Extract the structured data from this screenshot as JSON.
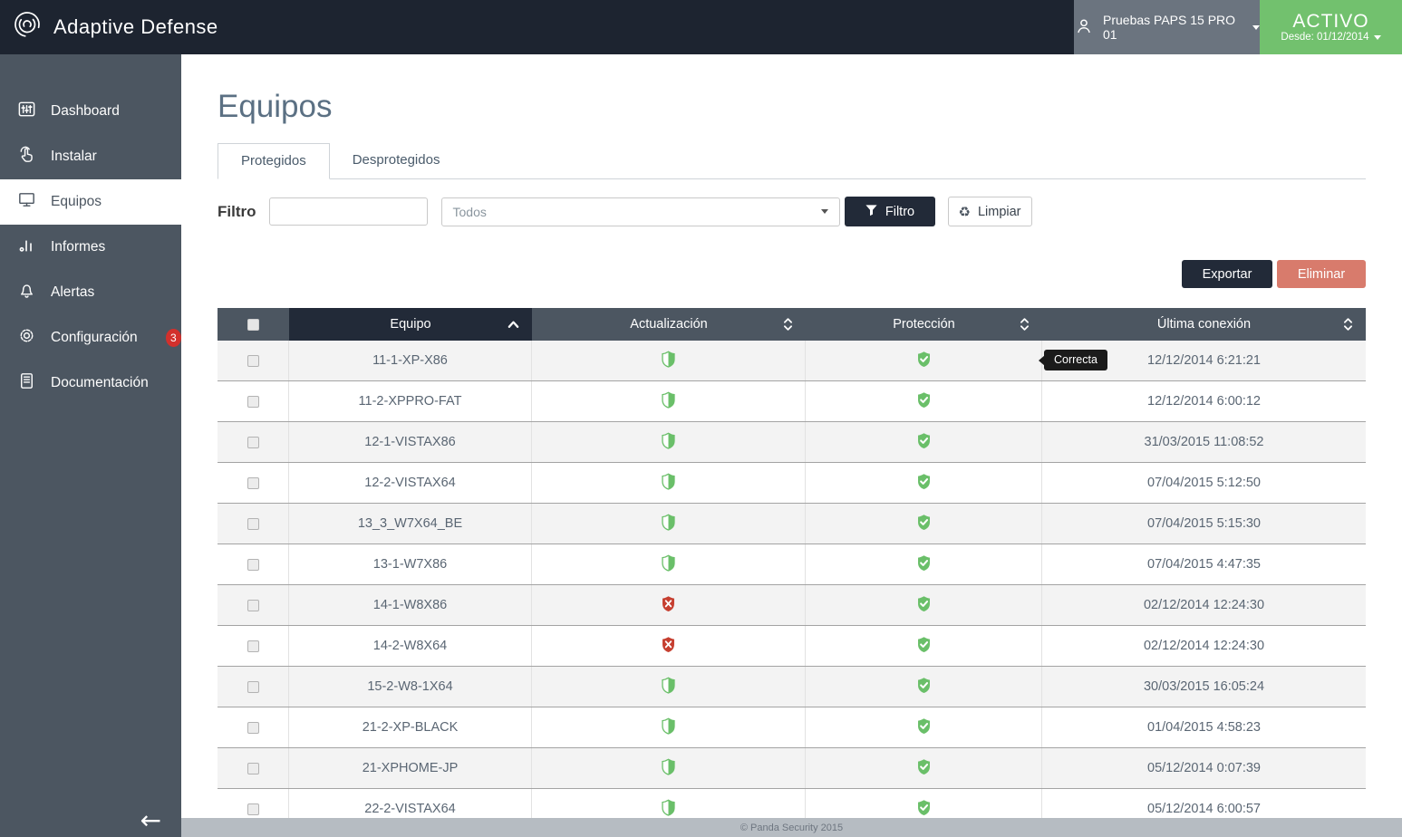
{
  "header": {
    "brand": "Adaptive Defense",
    "user": {
      "label": "Pruebas PAPS 15 PRO 01"
    },
    "status": {
      "title": "ACTIVO",
      "subtitle": "Desde: 01/12/2014"
    }
  },
  "sidebar": {
    "items": [
      {
        "label": "Dashboard",
        "icon": "dashboard-icon",
        "active": false
      },
      {
        "label": "Instalar",
        "icon": "install-icon",
        "active": false
      },
      {
        "label": "Equipos",
        "icon": "computers-icon",
        "active": true
      },
      {
        "label": "Informes",
        "icon": "reports-icon",
        "active": false
      },
      {
        "label": "Alertas",
        "icon": "alerts-icon",
        "active": false
      },
      {
        "label": "Configuración",
        "icon": "settings-icon",
        "active": false,
        "badge": "3"
      },
      {
        "label": "Documentación",
        "icon": "documentation-icon",
        "active": false
      }
    ]
  },
  "main": {
    "title": "Equipos",
    "tabs": [
      {
        "label": "Protegidos",
        "active": true
      },
      {
        "label": "Desprotegidos",
        "active": false
      }
    ],
    "filter": {
      "label": "Filtro",
      "input_value": "",
      "select_value": "Todos",
      "filter_button": "Filtro",
      "clear_button": "Limpiar"
    },
    "actions": {
      "export": "Exportar",
      "delete": "Eliminar"
    },
    "tooltip": "Correcta",
    "table": {
      "columns": [
        {
          "label": "Equipo",
          "sort": "asc"
        },
        {
          "label": "Actualización",
          "sort": "both"
        },
        {
          "label": "Protección",
          "sort": "both"
        },
        {
          "label": "Última conexión",
          "sort": "both"
        }
      ],
      "rows": [
        {
          "name": "11-1-XP-X86",
          "update": "partial",
          "protection": "ok",
          "last_connection": "12/12/2014 6:21:21"
        },
        {
          "name": "11-2-XPPRO-FAT",
          "update": "partial",
          "protection": "ok",
          "last_connection": "12/12/2014 6:00:12"
        },
        {
          "name": "12-1-VISTAX86",
          "update": "partial",
          "protection": "ok",
          "last_connection": "31/03/2015 11:08:52"
        },
        {
          "name": "12-2-VISTAX64",
          "update": "partial",
          "protection": "ok",
          "last_connection": "07/04/2015 5:12:50"
        },
        {
          "name": "13_3_W7X64_BE",
          "update": "partial",
          "protection": "ok",
          "last_connection": "07/04/2015 5:15:30"
        },
        {
          "name": "13-1-W7X86",
          "update": "partial",
          "protection": "ok",
          "last_connection": "07/04/2015 4:47:35"
        },
        {
          "name": "14-1-W8X86",
          "update": "error",
          "protection": "ok",
          "last_connection": "02/12/2014 12:24:30"
        },
        {
          "name": "14-2-W8X64",
          "update": "error",
          "protection": "ok",
          "last_connection": "02/12/2014 12:24:30"
        },
        {
          "name": "15-2-W8-1X64",
          "update": "partial",
          "protection": "ok",
          "last_connection": "30/03/2015 16:05:24"
        },
        {
          "name": "21-2-XP-BLACK",
          "update": "partial",
          "protection": "ok",
          "last_connection": "01/04/2015 4:58:23"
        },
        {
          "name": "21-XPHOME-JP",
          "update": "partial",
          "protection": "ok",
          "last_connection": "05/12/2014 0:07:39"
        },
        {
          "name": "22-2-VISTAX64",
          "update": "partial",
          "protection": "ok",
          "last_connection": "05/12/2014 6:00:57"
        }
      ]
    }
  },
  "footer": {
    "copyright": "© Panda Security 2015"
  },
  "colors": {
    "header_bg": "#1d2430",
    "sidebar_bg": "#4c5661",
    "accent_dark": "#222a38",
    "active_green": "#72c16e",
    "shield_green": "#6abf69",
    "shield_red": "#c63f30",
    "delete_salmon": "#d87b6c",
    "badge_red": "#d2302c"
  }
}
